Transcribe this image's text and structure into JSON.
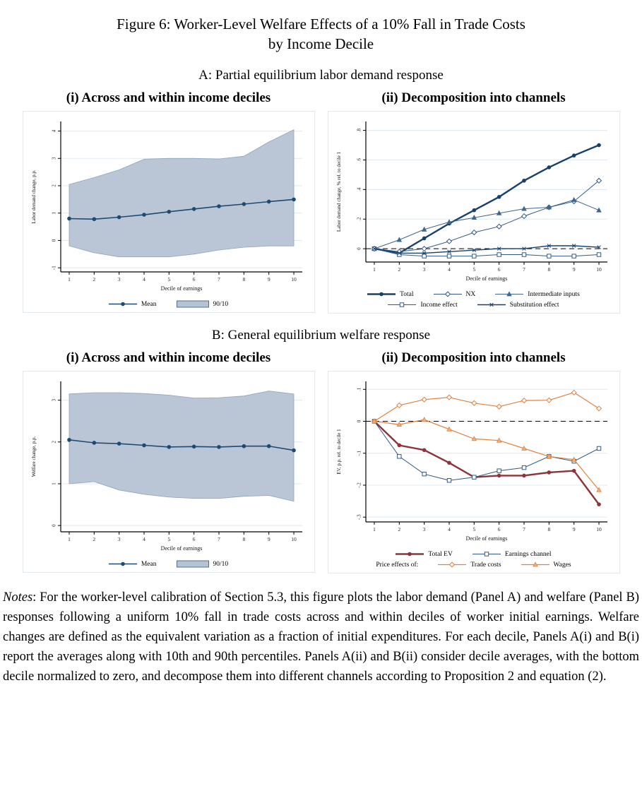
{
  "figure": {
    "title_line1": "Figure 6: Worker-Level Welfare Effects of a 10% Fall in Trade Costs",
    "title_line2": "by Income Decile",
    "panel_a_title": "A: Partial equilibrium labor demand response",
    "panel_b_title": "B: General equilibrium welfare response",
    "subtitle_i": "(i) Across and within income deciles",
    "subtitle_ii": "(ii) Decomposition into channels"
  },
  "notes": {
    "label": "Notes",
    "body": ": For the worker-level calibration of Section 5.3, this figure plots the labor demand (Panel A) and welfare (Panel B) responses following a uniform 10% fall in trade costs across and within deciles of worker initial earnings. Welfare changes are defined as the equivalent variation as a fraction of initial expenditures. For each decile, Panels A(i) and B(i) report the averages along with 10th and 90th percentiles. Panels A(ii) and B(ii) consider decile averages, with the bottom decile normalized to zero, and decompose them into different channels according to Proposition 2 and equation (2)."
  },
  "colors": {
    "navy": "#17406a",
    "navy_mid": "#2f5a88",
    "band_fill": "#b6c3d3",
    "band_stroke": "#8ea6bd",
    "band_legend_stroke": "#51708f",
    "grid": "#dfe8f0",
    "maroon": "#8d3339",
    "orange": "#e0813d",
    "orange_light": "#f4b07a",
    "axis": "#000000",
    "card_border": "#e3e8ec"
  },
  "chart_data": [
    {
      "id": "panel-a-i",
      "type": "line",
      "title": "A(i): Partial equilibrium labor demand, across and within income deciles",
      "x": [
        1,
        2,
        3,
        4,
        5,
        6,
        7,
        8,
        9,
        10
      ],
      "xlabel": "Decile of earnings",
      "ylabel": "Labor demand change, p.p.",
      "ylim": [
        -1.15,
        4.35
      ],
      "yticks": [
        -1,
        0,
        1,
        2,
        3,
        4
      ],
      "ytick_labels": [
        "-1",
        "0",
        "1",
        "2",
        "3",
        "4"
      ],
      "zero_dashed": false,
      "band": {
        "name": "90/10",
        "low": [
          -0.2,
          -0.45,
          -0.6,
          -0.6,
          -0.6,
          -0.5,
          -0.35,
          -0.25,
          -0.2,
          -0.2
        ],
        "high": [
          2.05,
          2.3,
          2.58,
          2.97,
          3.0,
          3.0,
          2.98,
          3.08,
          3.6,
          4.05
        ]
      },
      "series": [
        {
          "name": "Mean",
          "values": [
            0.8,
            0.78,
            0.85,
            0.94,
            1.05,
            1.15,
            1.25,
            1.33,
            1.42,
            1.5
          ],
          "color": "#1d4a73",
          "width": 1.6,
          "marker": "circle"
        }
      ],
      "legend_rows": [
        [
          "Mean",
          "90/10"
        ]
      ]
    },
    {
      "id": "panel-a-ii",
      "type": "line",
      "title": "A(ii): Decomposition of labor demand response into channels",
      "x": [
        1,
        2,
        3,
        4,
        5,
        6,
        7,
        8,
        9,
        10
      ],
      "xlabel": "Decile of earnings",
      "ylabel": "Labor demand change, % rel. to decile 1",
      "ylim": [
        -0.09,
        0.86
      ],
      "yticks": [
        0,
        0.2,
        0.4,
        0.6,
        0.8
      ],
      "ytick_labels": [
        "0",
        ".2",
        ".4",
        ".6",
        ".8"
      ],
      "zero_dashed": true,
      "band": null,
      "series": [
        {
          "name": "Total",
          "values": [
            0,
            -0.03,
            0.07,
            0.17,
            0.26,
            0.35,
            0.46,
            0.55,
            0.63,
            0.7
          ],
          "color": "#17406a",
          "width": 2.4,
          "marker": "circle"
        },
        {
          "name": "NX",
          "values": [
            0,
            -0.02,
            0.0,
            0.05,
            0.11,
            0.15,
            0.22,
            0.28,
            0.32,
            0.46
          ],
          "color": "#2f5a88",
          "width": 1,
          "marker": "diamond-open"
        },
        {
          "name": "Intermediate inputs",
          "values": [
            0,
            0.06,
            0.13,
            0.18,
            0.21,
            0.24,
            0.27,
            0.28,
            0.33,
            0.26
          ],
          "color": "#3f6690",
          "width": 1,
          "marker": "triangle",
          "mfill": "#3f6690"
        },
        {
          "name": "Income effect",
          "values": [
            0,
            -0.04,
            -0.05,
            -0.05,
            -0.05,
            -0.04,
            -0.04,
            -0.05,
            -0.05,
            -0.04
          ],
          "color": "#2f5a88",
          "width": 1,
          "marker": "square-open"
        },
        {
          "name": "Substitution effect",
          "values": [
            0,
            -0.03,
            -0.03,
            -0.02,
            -0.01,
            0.0,
            0.0,
            0.02,
            0.02,
            0.01
          ],
          "color": "#17406a",
          "width": 1.4,
          "marker": "x"
        }
      ],
      "legend_rows": [
        [
          "Total",
          "NX",
          "Intermediate inputs"
        ],
        [
          "Income effect",
          "Substitution effect"
        ]
      ]
    },
    {
      "id": "panel-b-i",
      "type": "line",
      "title": "B(i): General equilibrium welfare response, across and within income deciles",
      "x": [
        1,
        2,
        3,
        4,
        5,
        6,
        7,
        8,
        9,
        10
      ],
      "xlabel": "Decile of earnings",
      "ylabel": "Welfare change, p.p.",
      "ylim": [
        -0.15,
        3.45
      ],
      "yticks": [
        0,
        1,
        2,
        3
      ],
      "ytick_labels": [
        "0",
        "1",
        "2",
        "3"
      ],
      "zero_dashed": false,
      "band": {
        "name": "90/10",
        "low": [
          1.0,
          1.05,
          0.85,
          0.75,
          0.68,
          0.65,
          0.65,
          0.7,
          0.72,
          0.58
        ],
        "high": [
          3.15,
          3.18,
          3.18,
          3.16,
          3.12,
          3.05,
          3.06,
          3.1,
          3.22,
          3.15
        ]
      },
      "series": [
        {
          "name": "Mean",
          "values": [
            2.05,
            1.98,
            1.96,
            1.92,
            1.88,
            1.89,
            1.88,
            1.9,
            1.9,
            1.8
          ],
          "color": "#1d4a73",
          "width": 1.6,
          "marker": "circle"
        }
      ],
      "legend_rows": [
        [
          "Mean",
          "90/10"
        ]
      ]
    },
    {
      "id": "panel-b-ii",
      "type": "line",
      "title": "B(ii): Decomposition of welfare response into channels",
      "x": [
        1,
        2,
        3,
        4,
        5,
        6,
        7,
        8,
        9,
        10
      ],
      "xlabel": "Decile of earnings",
      "ylabel": "EV, p.p. rel. to decile 1",
      "ylim": [
        -0.315,
        0.125
      ],
      "yticks": [
        0.1,
        0,
        -0.1,
        -0.2,
        -0.3
      ],
      "ytick_labels": [
        ".1",
        "0",
        "-.1",
        "-.2",
        "-.3"
      ],
      "zero_dashed": true,
      "band": null,
      "series": [
        {
          "name": "Total EV",
          "values": [
            0,
            -0.075,
            -0.09,
            -0.13,
            -0.175,
            -0.17,
            -0.17,
            -0.16,
            -0.155,
            -0.26
          ],
          "color": "#8d3339",
          "width": 2.4,
          "marker": "circle"
        },
        {
          "name": "Earnings channel",
          "values": [
            0,
            -0.11,
            -0.165,
            -0.185,
            -0.175,
            -0.155,
            -0.145,
            -0.11,
            -0.125,
            -0.085
          ],
          "color": "#2f5a88",
          "width": 1,
          "marker": "square-open"
        },
        {
          "name": "Trade costs",
          "values": [
            0,
            0.05,
            0.068,
            0.075,
            0.057,
            0.046,
            0.065,
            0.066,
            0.09,
            0.04
          ],
          "color": "#e0813d",
          "width": 1.2,
          "marker": "diamond-open"
        },
        {
          "name": "Wages",
          "values": [
            0,
            -0.01,
            0.005,
            -0.025,
            -0.055,
            -0.06,
            -0.085,
            -0.11,
            -0.12,
            -0.215
          ],
          "color": "#e0813d",
          "width": 1.2,
          "marker": "triangle",
          "mfill": "#f4b07a"
        }
      ],
      "legend_rows": [
        [
          "Total EV",
          "Earnings channel"
        ],
        [
          "Price effects of:",
          "Trade costs",
          "Wages"
        ]
      ]
    }
  ]
}
